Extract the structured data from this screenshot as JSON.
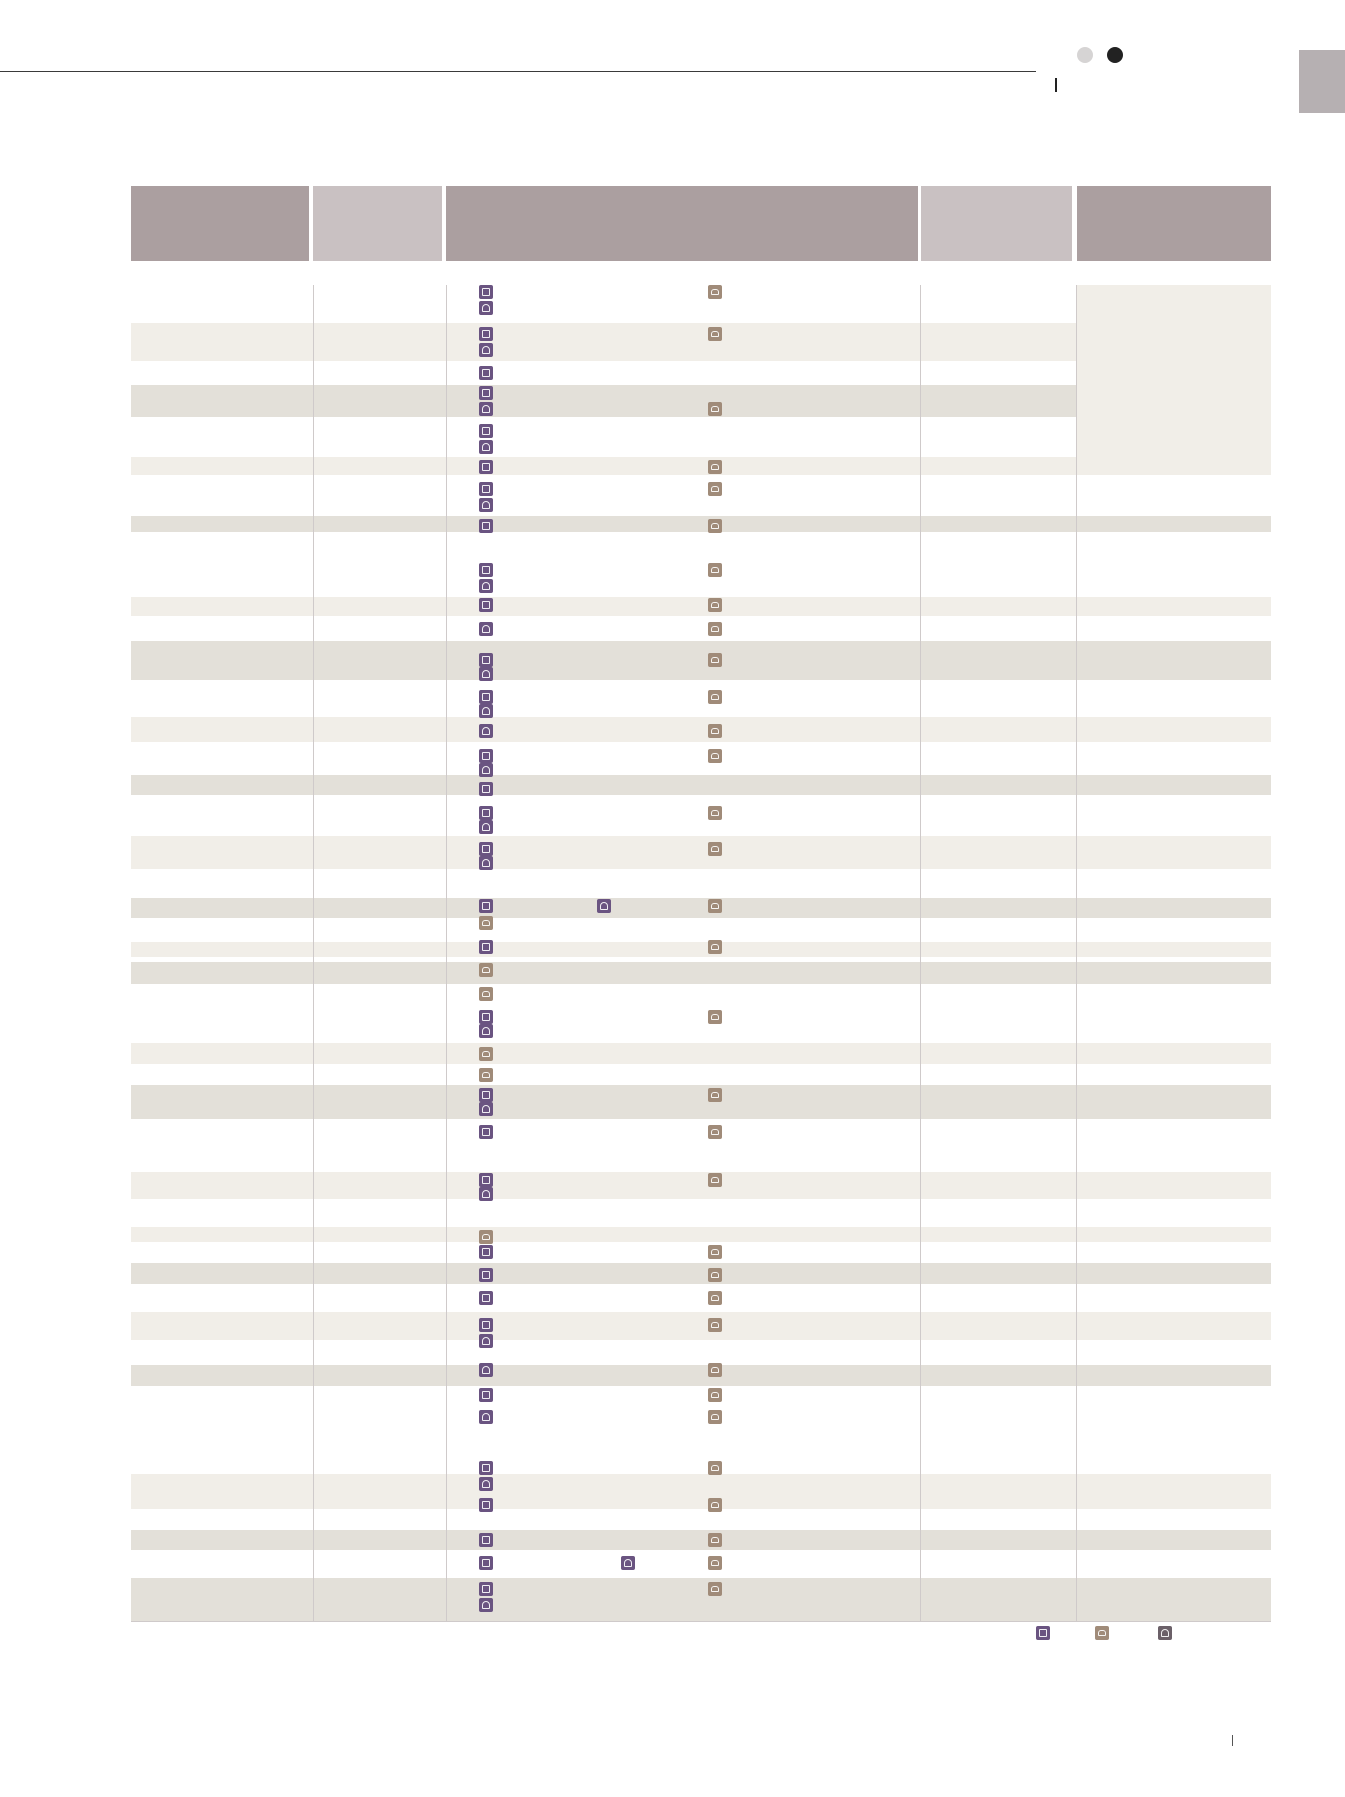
{
  "header": {
    "indicator_dots": [
      "light",
      "dark"
    ]
  },
  "legend": {
    "icons": [
      "bus-icon",
      "car-icon",
      "train-icon"
    ]
  },
  "table": {
    "columns": 5,
    "header_fills": [
      "#ab9fa0",
      "#c9c1c2",
      "#ab9fa0",
      "#c9c1c2",
      "#ab9fa0"
    ],
    "row_colors": {
      "light": "#f1eee8",
      "dark": "#e3e0d9"
    },
    "icon_colors": {
      "bus": "#6a5481",
      "train": "#6a5481",
      "car": "#a08b79"
    }
  }
}
